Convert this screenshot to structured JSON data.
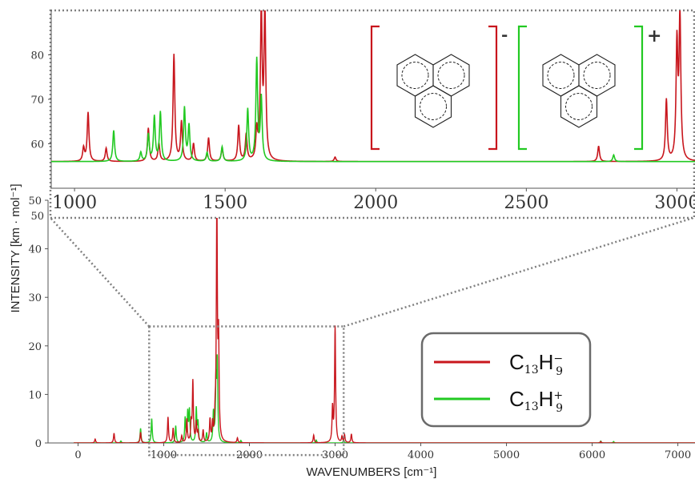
{
  "colors": {
    "anion": "#c8161d",
    "cation": "#22c922",
    "axis": "#555555",
    "dotted": "#808080"
  },
  "chart_data": [
    {
      "type": "line",
      "role": "main-plot",
      "xlabel": "WAVENUMBERS [cm⁻¹]",
      "ylabel": "INTENSITY [km · mol⁻¹]",
      "xlim": [
        -350,
        7200
      ],
      "ylim": [
        0,
        50
      ],
      "xticks": [
        0,
        1000,
        2000,
        3000,
        4000,
        5000,
        6000,
        7000
      ],
      "yticks": [
        0,
        10,
        20,
        30,
        40,
        50
      ],
      "series": [
        {
          "name": "C13H9-",
          "color": "#c8161d",
          "peaks": [
            [
              200,
              0.8
            ],
            [
              420,
              2.0
            ],
            [
              730,
              2.2
            ],
            [
              1050,
              5.3
            ],
            [
              1110,
              3.0
            ],
            [
              1210,
              1.4
            ],
            [
              1270,
              4.8
            ],
            [
              1320,
              3.8
            ],
            [
              1340,
              12.5
            ],
            [
              1380,
              4.0
            ],
            [
              1400,
              2.0
            ],
            [
              1460,
              2.5
            ],
            [
              1540,
              4.5
            ],
            [
              1570,
              3.5
            ],
            [
              1600,
              3.8
            ],
            [
              1620,
              49
            ],
            [
              1640,
              20
            ],
            [
              1860,
              1.0
            ],
            [
              2750,
              1.6
            ],
            [
              2970,
              7.0
            ],
            [
              3000,
              23.8
            ],
            [
              3080,
              1.2
            ],
            [
              3110,
              1.6
            ],
            [
              3190,
              1.8
            ],
            [
              6100,
              0.3
            ]
          ]
        },
        {
          "name": "C13H9+",
          "color": "#22c922",
          "peaks": [
            [
              500,
              0.4
            ],
            [
              730,
              3.0
            ],
            [
              860,
              5.0
            ],
            [
              1140,
              3.5
            ],
            [
              1250,
              5.0
            ],
            [
              1280,
              6.0
            ],
            [
              1300,
              6.5
            ],
            [
              1380,
              7.0
            ],
            [
              1400,
              4.0
            ],
            [
              1500,
              2.0
            ],
            [
              1580,
              6.0
            ],
            [
              1610,
              12.0
            ],
            [
              1625,
              16.0
            ],
            [
              1900,
              0.5
            ],
            [
              2780,
              0.6
            ],
            [
              3100,
              0.6
            ],
            [
              6100,
              0.4
            ],
            [
              6250,
              0.3
            ]
          ]
        }
      ],
      "legend": {
        "placement": "lower-right",
        "entries": [
          {
            "label": "C",
            "sub": "13",
            "h": "H",
            "sub2": "9",
            "sup": "−",
            "color": "#c8161d"
          },
          {
            "label": "C",
            "sub": "13",
            "h": "H",
            "sub2": "9",
            "sup": "+",
            "color": "#22c922"
          }
        ]
      },
      "zoom_box": {
        "xrange": [
          830,
          3100
        ],
        "yrange": [
          -2.5,
          24
        ]
      }
    },
    {
      "type": "line",
      "role": "inset-zoom",
      "xlim": [
        920,
        3060
      ],
      "ylim": [
        50,
        90
      ],
      "xticks": [
        1000,
        1500,
        2000,
        2500,
        3000
      ],
      "yticks": [
        50,
        60,
        70,
        80
      ],
      "series": [
        {
          "name": "C13H9-",
          "color": "#c8161d",
          "peaks": [
            [
              1030,
              59
            ],
            [
              1045,
              67
            ],
            [
              1105,
              59
            ],
            [
              1245,
              63.5
            ],
            [
              1280,
              60
            ],
            [
              1330,
              80
            ],
            [
              1355,
              64.8
            ],
            [
              1395,
              60
            ],
            [
              1445,
              61.3
            ],
            [
              1490,
              59
            ],
            [
              1545,
              64
            ],
            [
              1570,
              62
            ],
            [
              1605,
              62.5
            ],
            [
              1620,
              89
            ],
            [
              1632,
              89
            ],
            [
              1865,
              57
            ],
            [
              2740,
              59.5
            ],
            [
              2965,
              69.8
            ],
            [
              3000,
              82
            ],
            [
              3010,
              88
            ]
          ]
        },
        {
          "name": "C13H9+",
          "color": "#22c922",
          "peaks": [
            [
              1130,
              63
            ],
            [
              1220,
              58
            ],
            [
              1245,
              62
            ],
            [
              1265,
              66
            ],
            [
              1285,
              67
            ],
            [
              1365,
              68
            ],
            [
              1380,
              64
            ],
            [
              1440,
              58
            ],
            [
              1490,
              59.3
            ],
            [
              1575,
              67.7
            ],
            [
              1605,
              78.7
            ],
            [
              1620,
              70
            ],
            [
              2790,
              57.5
            ]
          ]
        }
      ]
    }
  ]
}
